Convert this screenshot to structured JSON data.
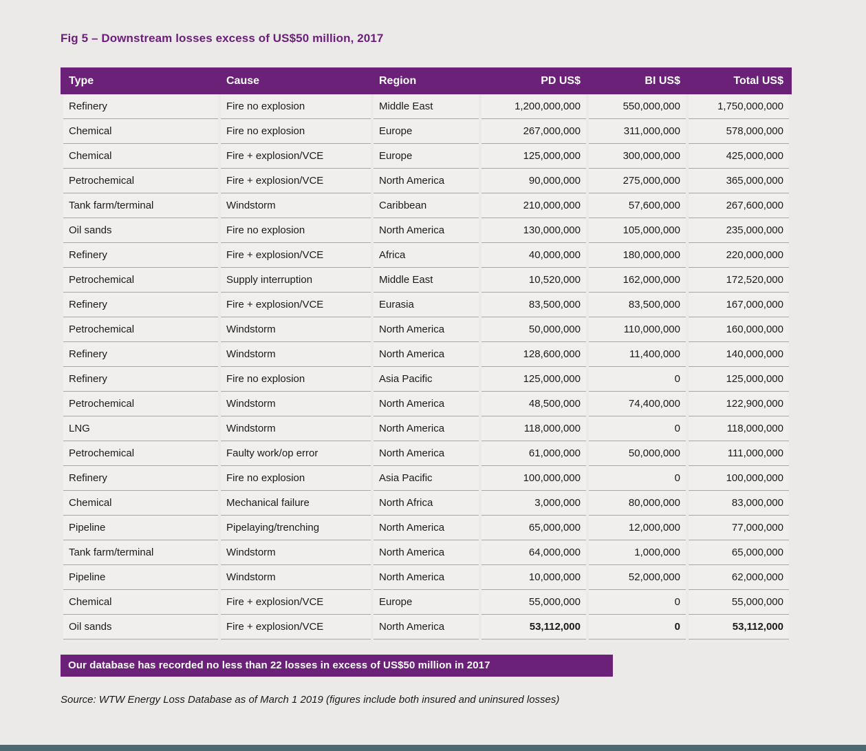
{
  "page": {
    "title": "Fig 5 – Downstream losses excess of US$50 million, 2017",
    "banner": "Our database has recorded no less than 22 losses in excess of US$50 million in 2017",
    "source": "Source: WTW Energy Loss Database as of March 1 2019 (figures include both insured and uninsured losses)"
  },
  "colors": {
    "brand_purple": "#6b2178",
    "page_background": "#ebeae8",
    "row_background": "#f0efee",
    "row_separator": "#a9a7a4",
    "header_text": "#ffffff",
    "body_text": "#1a1a1a",
    "bottom_bar": "#4e6871"
  },
  "chart_data": {
    "type": "table",
    "title": "Fig 5 – Downstream losses excess of US$50 million, 2017",
    "columns": [
      {
        "key": "type",
        "label": "Type",
        "align": "left"
      },
      {
        "key": "cause",
        "label": "Cause",
        "align": "left"
      },
      {
        "key": "region",
        "label": "Region",
        "align": "left"
      },
      {
        "key": "pd_usd",
        "label": "PD US$",
        "align": "right"
      },
      {
        "key": "bi_usd",
        "label": "BI US$",
        "align": "right"
      },
      {
        "key": "total_usd",
        "label": "Total US$",
        "align": "right"
      }
    ],
    "rows": [
      {
        "cells": [
          "Refinery",
          "Fire no explosion",
          "Middle East",
          "1,200,000,000",
          "550,000,000",
          "1,750,000,000"
        ]
      },
      {
        "cells": [
          "Chemical",
          "Fire no explosion",
          "Europe",
          "267,000,000",
          "311,000,000",
          "578,000,000"
        ]
      },
      {
        "cells": [
          "Chemical",
          "Fire + explosion/VCE",
          "Europe",
          "125,000,000",
          "300,000,000",
          "425,000,000"
        ]
      },
      {
        "cells": [
          "Petrochemical",
          "Fire + explosion/VCE",
          "North America",
          "90,000,000",
          "275,000,000",
          "365,000,000"
        ]
      },
      {
        "cells": [
          "Tank farm/terminal",
          "Windstorm",
          "Caribbean",
          "210,000,000",
          "57,600,000",
          "267,600,000"
        ]
      },
      {
        "cells": [
          "Oil sands",
          "Fire no explosion",
          "North America",
          "130,000,000",
          "105,000,000",
          "235,000,000"
        ]
      },
      {
        "cells": [
          "Refinery",
          "Fire + explosion/VCE",
          "Africa",
          "40,000,000",
          "180,000,000",
          "220,000,000"
        ]
      },
      {
        "cells": [
          "Petrochemical",
          "Supply interruption",
          "Middle East",
          "10,520,000",
          "162,000,000",
          "172,520,000"
        ]
      },
      {
        "cells": [
          "Refinery",
          "Fire + explosion/VCE",
          "Eurasia",
          "83,500,000",
          "83,500,000",
          "167,000,000"
        ]
      },
      {
        "cells": [
          "Petrochemical",
          "Windstorm",
          "North America",
          "50,000,000",
          "110,000,000",
          "160,000,000"
        ]
      },
      {
        "cells": [
          "Refinery",
          "Windstorm",
          "North America",
          "128,600,000",
          "11,400,000",
          "140,000,000"
        ]
      },
      {
        "cells": [
          "Refinery",
          "Fire no explosion",
          "Asia Pacific",
          "125,000,000",
          "0",
          "125,000,000"
        ]
      },
      {
        "cells": [
          "Petrochemical",
          "Windstorm",
          "North America",
          "48,500,000",
          "74,400,000",
          "122,900,000"
        ]
      },
      {
        "cells": [
          "LNG",
          "Windstorm",
          "North America",
          "118,000,000",
          "0",
          "118,000,000"
        ]
      },
      {
        "cells": [
          "Petrochemical",
          "Faulty work/op error",
          "North America",
          "61,000,000",
          "50,000,000",
          "111,000,000"
        ]
      },
      {
        "cells": [
          "Refinery",
          "Fire no explosion",
          "Asia Pacific",
          "100,000,000",
          "0",
          "100,000,000"
        ]
      },
      {
        "cells": [
          "Chemical",
          "Mechanical failure",
          "North Africa",
          "3,000,000",
          "80,000,000",
          "83,000,000"
        ]
      },
      {
        "cells": [
          "Pipeline",
          "Pipelaying/trenching",
          "North America",
          "65,000,000",
          "12,000,000",
          "77,000,000"
        ]
      },
      {
        "cells": [
          "Tank farm/terminal",
          "Windstorm",
          "North America",
          "64,000,000",
          "1,000,000",
          "65,000,000"
        ]
      },
      {
        "cells": [
          "Pipeline",
          "Windstorm",
          "North America",
          "10,000,000",
          "52,000,000",
          "62,000,000"
        ]
      },
      {
        "cells": [
          "Chemical",
          "Fire + explosion/VCE",
          "Europe",
          "55,000,000",
          "0",
          "55,000,000"
        ]
      },
      {
        "cells": [
          "Oil sands",
          "Fire + explosion/VCE",
          "North America",
          "53,112,000",
          "0",
          "53,112,000"
        ],
        "bold_values": true
      }
    ]
  }
}
